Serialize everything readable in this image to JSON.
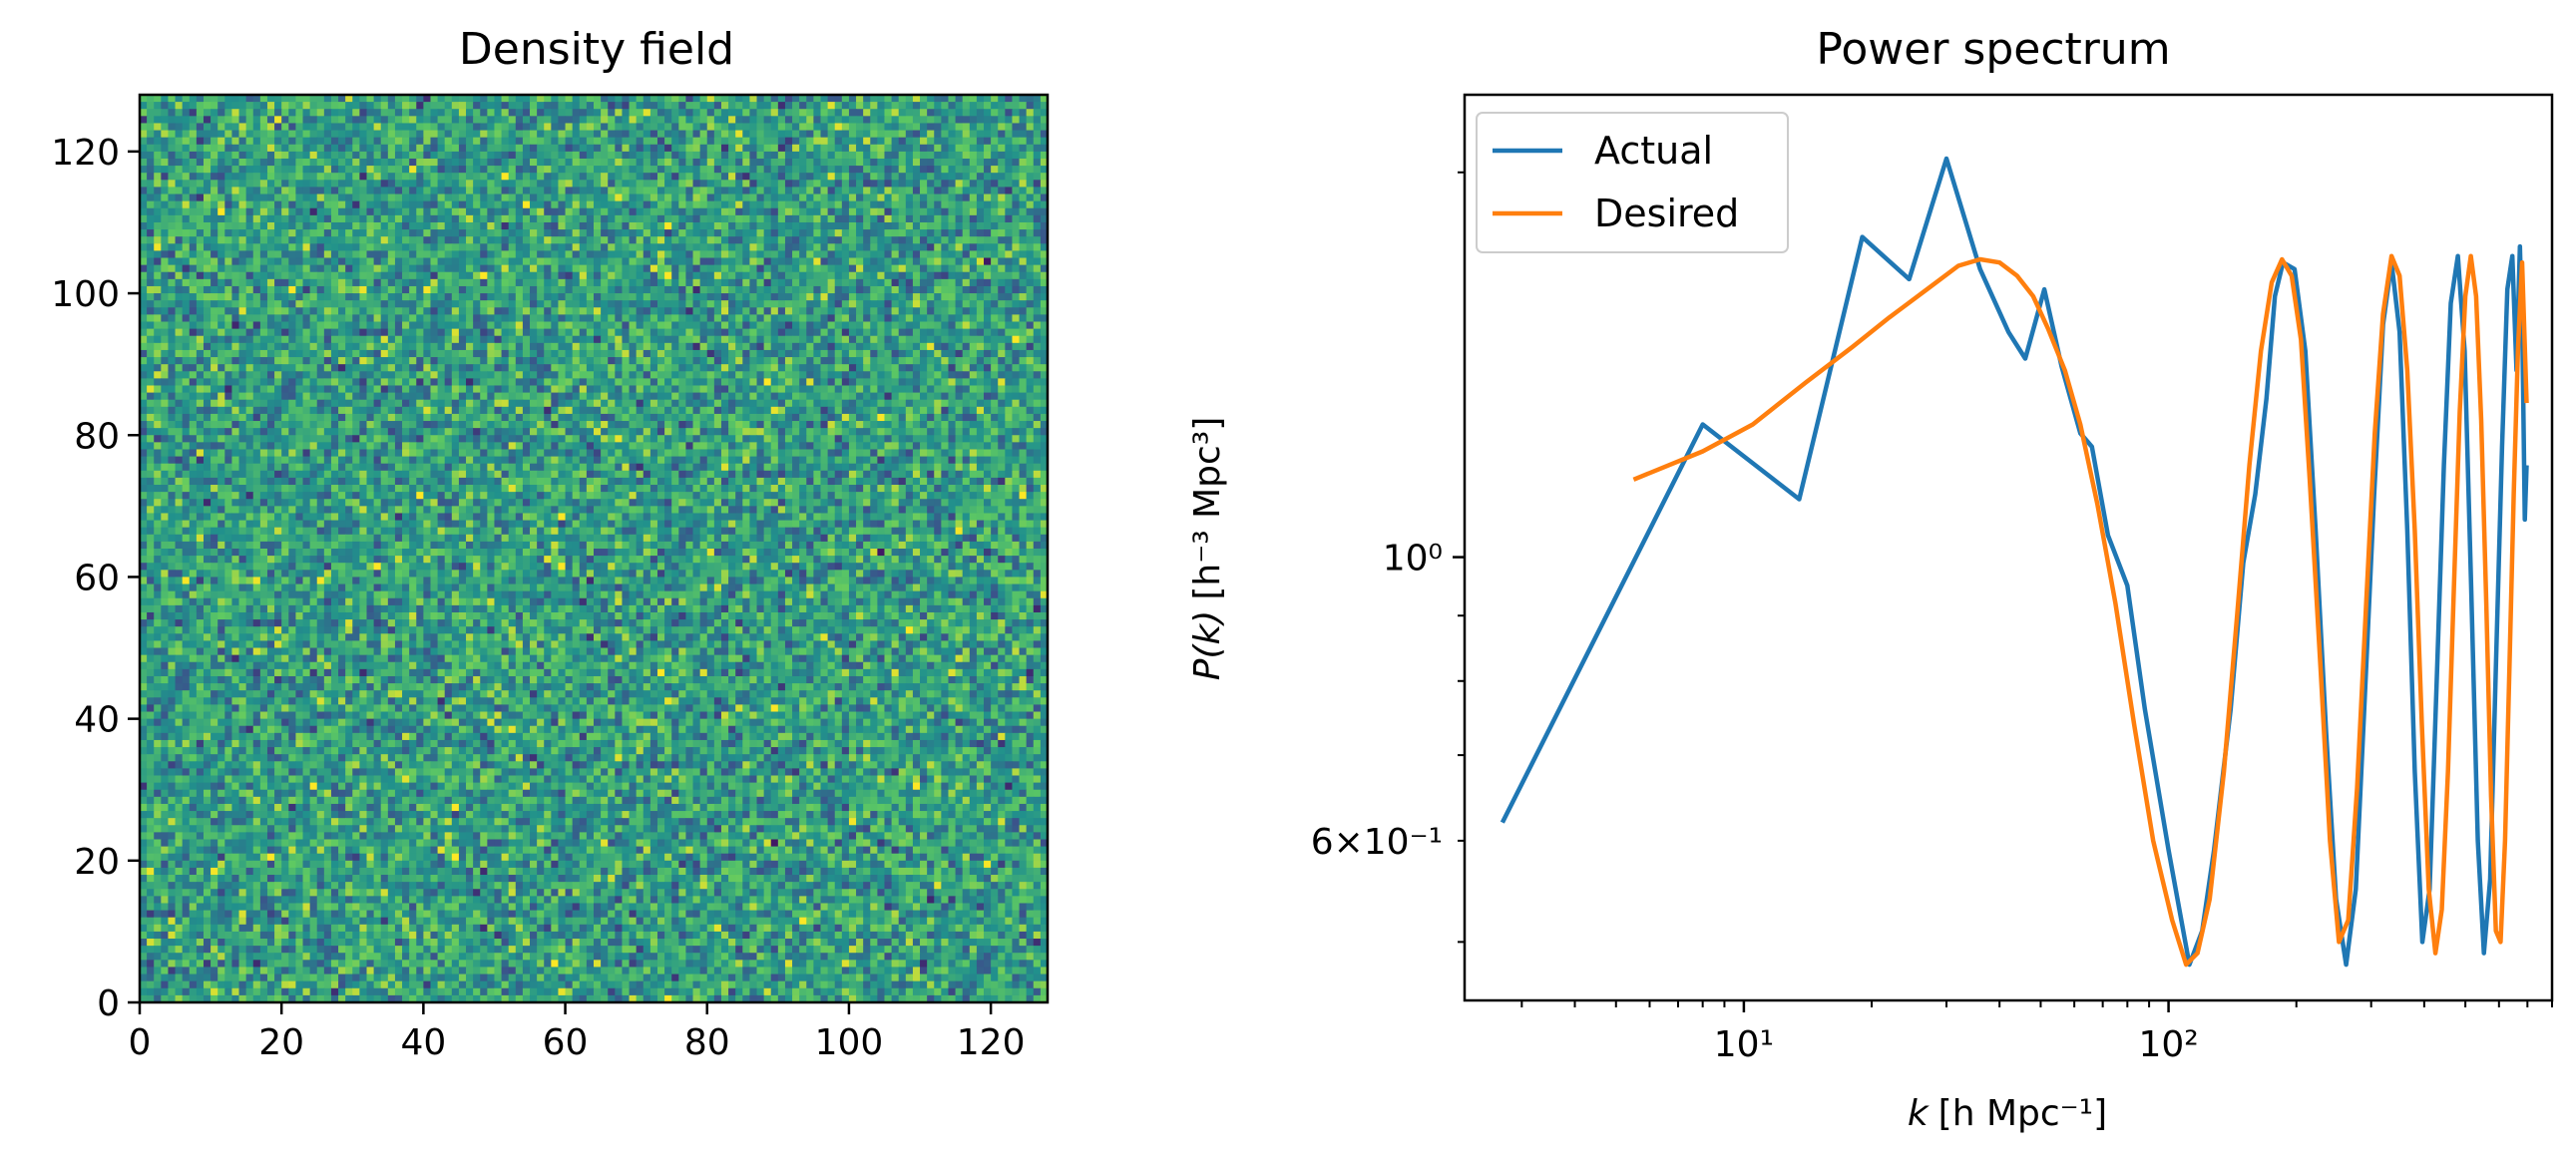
{
  "chart_data": [
    {
      "type": "heatmap",
      "title": "Density field",
      "xlim": [
        0,
        128
      ],
      "ylim": [
        0,
        128
      ],
      "xticks": [
        "0",
        "20",
        "40",
        "60",
        "80",
        "100",
        "120"
      ],
      "yticks": [
        "0",
        "20",
        "40",
        "60",
        "80",
        "100",
        "120"
      ],
      "grid_size": [
        128,
        128
      ],
      "colormap": "viridis"
    },
    {
      "type": "line",
      "title": "Power spectrum",
      "xlabel_prefix": "k",
      "xlabel_units": "[h Mpc⁻¹]",
      "ylabel_prefix": "P(k)",
      "ylabel_units": "[h⁻³ Mpc³]",
      "xscale": "log",
      "yscale": "log",
      "xlim": [
        2.2,
        800
      ],
      "ylim": [
        0.45,
        2.3
      ],
      "xticks": [
        "10¹",
        "10²"
      ],
      "yticks": [
        "10⁰",
        "6×10⁻¹"
      ],
      "legend": "top-left",
      "series": [
        {
          "name": "Actual",
          "color": "#1f77b4",
          "x": [
            2.7,
            8.0,
            13.5,
            19.0,
            24.5,
            30.0,
            36.0,
            42.0,
            46.0,
            51.0,
            56.0,
            62.0,
            66.0,
            72.0,
            80.0,
            88.0,
            100.0,
            112.0,
            120.0,
            128.0,
            140.0,
            150.0,
            160.0,
            170.0,
            178.0,
            186.0,
            198.0,
            210.0,
            222.0,
            235.0,
            248.0,
            262.0,
            276.0,
            290.0,
            305.0,
            320.0,
            335.0,
            350.0,
            365.0,
            380.0,
            396.0,
            412.0,
            428.0,
            445.0,
            462.0,
            480.0,
            498.0,
            516.0,
            535.0,
            553.0,
            572.0,
            590.0,
            610.0,
            628.0,
            645.0,
            660.0,
            672.0,
            682.0,
            690.0,
            697.0
          ],
          "values": [
            0.62,
            1.27,
            1.11,
            1.78,
            1.65,
            2.05,
            1.68,
            1.5,
            1.43,
            1.62,
            1.41,
            1.25,
            1.22,
            1.04,
            0.95,
            0.76,
            0.59,
            0.48,
            0.51,
            0.59,
            0.76,
            0.99,
            1.12,
            1.33,
            1.6,
            1.7,
            1.68,
            1.45,
            1.05,
            0.73,
            0.54,
            0.48,
            0.55,
            0.78,
            1.12,
            1.52,
            1.7,
            1.5,
            1.05,
            0.68,
            0.5,
            0.55,
            0.8,
            1.18,
            1.58,
            1.72,
            1.45,
            0.95,
            0.6,
            0.49,
            0.56,
            0.82,
            1.22,
            1.62,
            1.72,
            1.4,
            1.75,
            1.45,
            1.07,
            1.18
          ]
        },
        {
          "name": "Desired",
          "color": "#ff7f0e",
          "x": [
            5.5,
            8.0,
            10.5,
            14.0,
            18.0,
            22.0,
            27.0,
            32.0,
            36.0,
            40.0,
            44.0,
            48.0,
            52.0,
            57.0,
            62.0,
            68.0,
            75.0,
            83.0,
            92.0,
            102.0,
            110.0,
            117.0,
            125.0,
            135.0,
            145.0,
            155.0,
            165.0,
            175.0,
            185.0,
            195.0,
            205.0,
            215.0,
            228.0,
            240.0,
            252.0,
            265.0,
            278.0,
            292.0,
            306.0,
            320.0,
            335.0,
            350.0,
            365.0,
            380.0,
            395.0,
            410.0,
            425.0,
            440.0,
            455.0,
            470.0,
            485.0,
            500.0,
            515.0,
            530.0,
            545.0,
            560.0,
            575.0,
            590.0,
            605.0,
            620.0,
            635.0,
            650.0,
            665.0,
            680.0,
            697.0
          ],
          "values": [
            1.15,
            1.21,
            1.27,
            1.37,
            1.46,
            1.54,
            1.62,
            1.69,
            1.71,
            1.7,
            1.66,
            1.6,
            1.51,
            1.4,
            1.27,
            1.1,
            0.92,
            0.74,
            0.6,
            0.52,
            0.48,
            0.49,
            0.54,
            0.68,
            0.9,
            1.18,
            1.45,
            1.64,
            1.71,
            1.66,
            1.48,
            1.15,
            0.82,
            0.6,
            0.5,
            0.52,
            0.66,
            0.92,
            1.25,
            1.55,
            1.72,
            1.66,
            1.4,
            1.05,
            0.74,
            0.55,
            0.49,
            0.53,
            0.68,
            0.95,
            1.3,
            1.6,
            1.72,
            1.6,
            1.28,
            0.92,
            0.65,
            0.51,
            0.5,
            0.6,
            0.82,
            1.12,
            1.45,
            1.7,
            1.32
          ]
        }
      ]
    }
  ]
}
